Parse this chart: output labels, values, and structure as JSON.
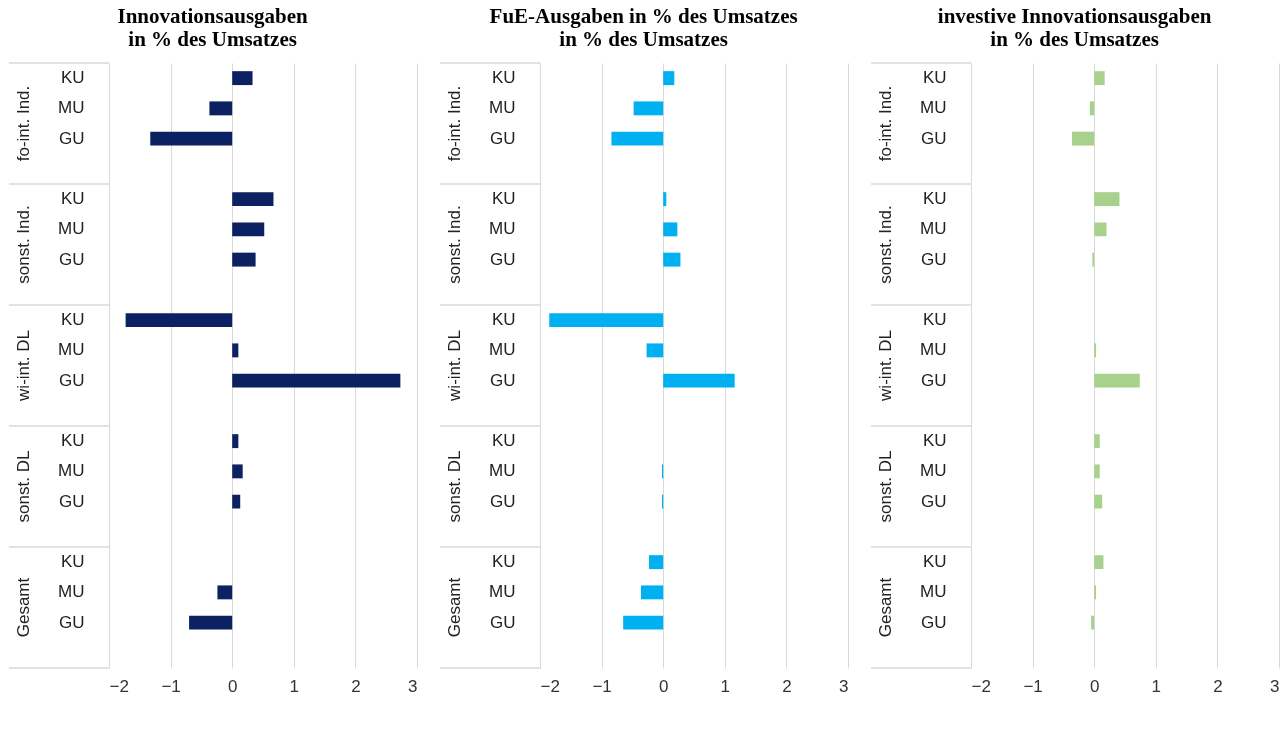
{
  "chart_data": [
    {
      "type": "bar",
      "orientation": "horizontal",
      "title": "Innovationsausgaben\nin % des Umsatzes",
      "categories": [
        "KU",
        "MU",
        "GU",
        null,
        "KU",
        "MU",
        "GU",
        null,
        "KU",
        "MU",
        "GU",
        null,
        "KU",
        "MU",
        "GU",
        null,
        "KU",
        "MU",
        "GU",
        null
      ],
      "values": [
        0.33,
        -0.37,
        -1.33,
        null,
        0.67,
        0.52,
        0.38,
        null,
        -1.73,
        0.1,
        2.73,
        null,
        0.1,
        0.17,
        0.13,
        null,
        0,
        -0.24,
        -0.7,
        null
      ],
      "color": "#0b2161",
      "annotations": [
        "fo-int. Ind.",
        "sonst. Ind.",
        "wi-int. DL",
        "sonst. DL",
        "Gesamt"
      ],
      "xlim": [
        -2,
        3
      ],
      "xticks": [
        -2,
        -1,
        0,
        1,
        2,
        3
      ],
      "grid": "x"
    },
    {
      "type": "bar",
      "orientation": "horizontal",
      "title": "FuE-Ausgaben in % des Umsatzes\nin % des Umsatzes",
      "categories": [
        "KU",
        "MU",
        "GU",
        null,
        "KU",
        "MU",
        "GU",
        null,
        "KU",
        "MU",
        "GU",
        null,
        "KU",
        "MU",
        "GU",
        null,
        "KU",
        "MU",
        "GU",
        null
      ],
      "values": [
        0.18,
        -0.48,
        -0.84,
        null,
        0.05,
        0.23,
        0.28,
        null,
        -1.85,
        -0.27,
        1.16,
        null,
        0,
        -0.02,
        -0.02,
        null,
        -0.23,
        -0.36,
        -0.65,
        null
      ],
      "color": "#00b0f0",
      "annotations": [
        "fo-int. Ind.",
        "sonst. Ind.",
        "wi-int. DL",
        "sonst. DL",
        "Gesamt"
      ],
      "xlim": [
        -2,
        3
      ],
      "xticks": [
        -2,
        -1,
        0,
        1,
        2,
        3
      ],
      "grid": "x"
    },
    {
      "type": "bar",
      "orientation": "horizontal",
      "title": "investive Innovationsausgaben\nin % des Umsatzes",
      "categories": [
        "KU",
        "MU",
        "GU",
        null,
        "KU",
        "MU",
        "GU",
        null,
        "KU",
        "MU",
        "GU",
        null,
        "KU",
        "MU",
        "GU",
        null,
        "KU",
        "MU",
        "GU",
        null
      ],
      "values": [
        0.17,
        -0.07,
        -0.36,
        null,
        0.41,
        0.2,
        -0.03,
        null,
        0,
        0.03,
        0.74,
        null,
        0.09,
        0.09,
        0.13,
        null,
        0.15,
        0.03,
        -0.05,
        null
      ],
      "color": "#a9d18e",
      "annotations": [
        "fo-int. Ind.",
        "sonst. Ind.",
        "wi-int. DL",
        "sonst. DL",
        "Gesamt"
      ],
      "xlim": [
        -2,
        3
      ],
      "xticks": [
        -2,
        -1,
        0,
        1,
        2,
        3
      ],
      "grid": "x"
    }
  ]
}
